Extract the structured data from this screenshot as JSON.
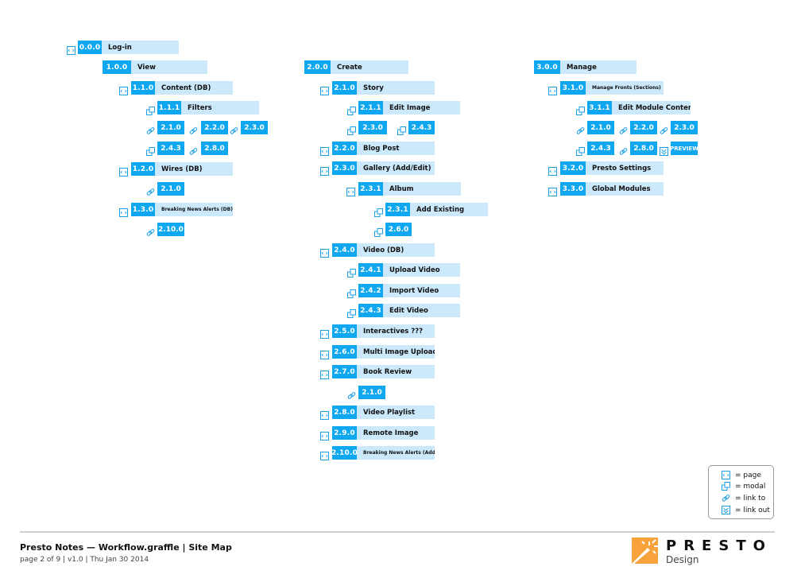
{
  "nodes": [
    {
      "code": "0.0.0",
      "label": "Log-in",
      "icon": "page-icon"
    },
    {
      "code": "1.0.0",
      "label": "View",
      "icon": ""
    },
    {
      "code": "1.1.0",
      "label": "Content (DB)",
      "icon": "page-icon"
    },
    {
      "code": "1.1.1",
      "label": "Filters",
      "icon": "modal-icon"
    },
    {
      "code": "1.2.0",
      "label": "Wires (DB)",
      "icon": "page-icon"
    },
    {
      "code": "1.3.0",
      "label": "Breaking News Alerts (DB)",
      "icon": "page-icon"
    },
    {
      "code": "2.0.0",
      "label": "Create",
      "icon": ""
    },
    {
      "code": "2.1.0",
      "label": "Story",
      "icon": "page-icon"
    },
    {
      "code": "2.1.1",
      "label": "Edit Image",
      "icon": "modal-icon"
    },
    {
      "code": "2.2.0",
      "label": "Blog Post",
      "icon": "page-icon"
    },
    {
      "code": "2.3.0",
      "label": "Gallery (Add/Edit)",
      "icon": "page-icon"
    },
    {
      "code": "2.3.1",
      "label": "Album",
      "icon": "page-icon"
    },
    {
      "code": "2.3.1",
      "label": "Add Existing",
      "icon": "modal-icon"
    },
    {
      "code": "2.4.0",
      "label": "Video (DB)",
      "icon": "page-icon"
    },
    {
      "code": "2.4.1",
      "label": "Upload Video",
      "icon": "modal-icon"
    },
    {
      "code": "2.4.2",
      "label": "Import Video",
      "icon": "modal-icon"
    },
    {
      "code": "2.4.3",
      "label": "Edit Video",
      "icon": "modal-icon"
    },
    {
      "code": "2.5.0",
      "label": "Interactives ???",
      "icon": "page-icon"
    },
    {
      "code": "2.6.0",
      "label": "Multi Image Upload",
      "icon": "page-icon"
    },
    {
      "code": "2.7.0",
      "label": "Book Review",
      "icon": "page-icon"
    },
    {
      "code": "2.8.0",
      "label": "Video Playlist",
      "icon": "page-icon"
    },
    {
      "code": "2.9.0",
      "label": "Remote Image",
      "icon": "page-icon"
    },
    {
      "code": "2.10.0",
      "label": "Breaking News Alerts (Add/Edit)",
      "icon": "page-icon"
    },
    {
      "code": "3.0.0",
      "label": "Manage",
      "icon": ""
    },
    {
      "code": "3.1.0",
      "label": "Manage Fronts (Sections)",
      "icon": "page-icon"
    },
    {
      "code": "3.1.1",
      "label": "Edit Module Content",
      "icon": "modal-icon"
    },
    {
      "code": "3.2.0",
      "label": "Presto Settings",
      "icon": "page-icon"
    },
    {
      "code": "3.3.0",
      "label": "Global Modules",
      "icon": "page-icon"
    }
  ],
  "refs": [
    {
      "code": "2.1.0",
      "icon": "link-icon"
    },
    {
      "code": "2.2.0",
      "icon": "link-icon"
    },
    {
      "code": "2.3.0",
      "icon": "link-icon"
    },
    {
      "code": "2.4.3",
      "icon": "modal-icon"
    },
    {
      "code": "2.8.0",
      "icon": "link-icon"
    },
    {
      "code": "2.1.0",
      "icon": "link-icon"
    },
    {
      "code": "2.10.0",
      "icon": "link-icon"
    },
    {
      "code": "2.3.0",
      "icon": "modal-icon"
    },
    {
      "code": "2.4.3",
      "icon": "modal-icon"
    },
    {
      "code": "2.6.0",
      "icon": "modal-icon"
    },
    {
      "code": "2.1.0",
      "icon": "link-icon"
    },
    {
      "code": "2.1.0",
      "icon": "link-icon"
    },
    {
      "code": "2.2.0",
      "icon": "link-icon"
    },
    {
      "code": "2.3.0",
      "icon": "link-icon"
    },
    {
      "code": "2.4.3",
      "icon": "modal-icon"
    },
    {
      "code": "2.8.0",
      "icon": "link-icon"
    },
    {
      "code": "PREVIEW",
      "icon": "link-out-icon"
    }
  ],
  "legend": [
    {
      "icon": "page-icon",
      "text": "= page"
    },
    {
      "icon": "modal-icon",
      "text": "= modal"
    },
    {
      "icon": "link-icon",
      "text": "= link to"
    },
    {
      "icon": "link-out-icon",
      "text": "= link out"
    }
  ],
  "footer": {
    "title": "Presto Notes — Workflow.graffle | Site Map",
    "subtitle": "page 2 of 9 | v1.0 | Thu Jan 30 2014"
  },
  "logo": {
    "word": "PRESTO",
    "sub": "Design"
  },
  "colors": {
    "accent": "#0fa8f0",
    "label_bg": "#cce9fb",
    "logo_orange": "#f7a23b"
  }
}
